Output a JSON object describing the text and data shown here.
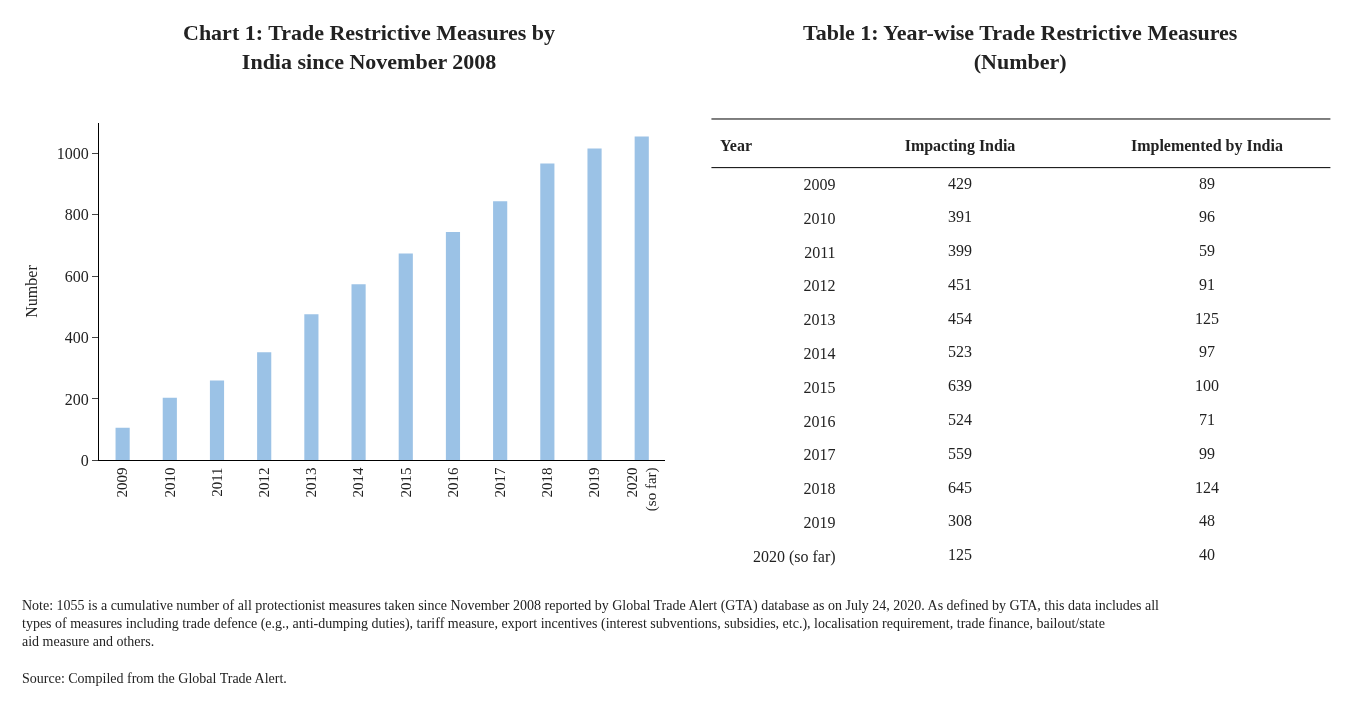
{
  "chart_data": [
    {
      "type": "bar",
      "title": "Chart 1: Trade Restrictive Measures by India since November 2008",
      "ylabel": "Number",
      "categories": [
        "2009",
        "2010",
        "2011",
        "2012",
        "2013",
        "2014",
        "2015",
        "2016",
        "2017",
        "2018",
        "2019",
        "2020 (so far)"
      ],
      "values": [
        106,
        204,
        260,
        352,
        476,
        574,
        674,
        744,
        844,
        967,
        1016,
        1055
      ],
      "color": "#9bc2e6",
      "ylim": [
        0,
        1100
      ],
      "yticks": [
        0,
        200,
        400,
        600,
        800,
        1000
      ],
      "annotations": [
        "Note: 1055 is a cumulative number of all protectionist measures taken since November 2008 reported by Global Trade Alert (GTA) database as on July 24, 2020. As defined by GTA, this data includes all types of measures including trade defence (e.g., anti-dumping duties), tariff measure, export incentives (interest subventions, subsidies, etc.), localisation requirement, trade finance, bailout/state aid measure and others.",
        "Source: Compiled from the Global Trade Alert."
      ]
    },
    {
      "type": "heatmap",
      "title": "Table 1: Year-wise Trade Restrictive Measures (Number)",
      "ylabel": "Year",
      "categories": [
        "Impacting India",
        "Implemented by India"
      ],
      "y_categories": [
        "2009",
        "2010",
        "2011",
        "2012",
        "2013",
        "2014",
        "2015",
        "2016",
        "2017",
        "2018",
        "2019",
        "2020 (so far)"
      ],
      "cells": [
        [
          429,
          89
        ],
        [
          391,
          96
        ],
        [
          399,
          59
        ],
        [
          451,
          91
        ],
        [
          454,
          125
        ],
        [
          523,
          97
        ],
        [
          639,
          100
        ],
        [
          524,
          71
        ],
        [
          559,
          99
        ],
        [
          645,
          124
        ],
        [
          308,
          48
        ],
        [
          125,
          40
        ]
      ],
      "data_labels": true
    }
  ]
}
